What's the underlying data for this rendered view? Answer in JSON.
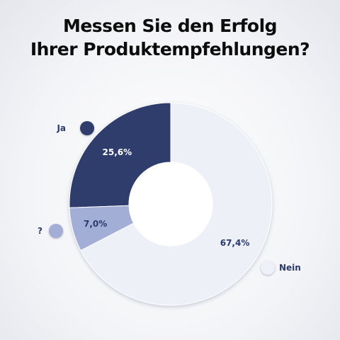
{
  "title": {
    "line1": "Messen Sie den Erfolg",
    "line2": "Ihrer Produktempfehlungen?"
  },
  "chart_data": {
    "type": "pie",
    "donut": true,
    "title": "Messen Sie den Erfolg Ihrer Produktempfehlungen?",
    "slices": [
      {
        "label": "Ja",
        "value": 25.6,
        "value_label": "25,6%",
        "color": "#2e3e6c",
        "text_color": "#ffffff"
      },
      {
        "label": "?",
        "value": 7.0,
        "value_label": "7,0%",
        "color": "#a3aed6",
        "text_color": "#2b3a6b"
      },
      {
        "label": "Nein",
        "value": 67.4,
        "value_label": "67,4%",
        "color": "#eef0f8",
        "text_color": "#2b3a6b"
      }
    ]
  }
}
